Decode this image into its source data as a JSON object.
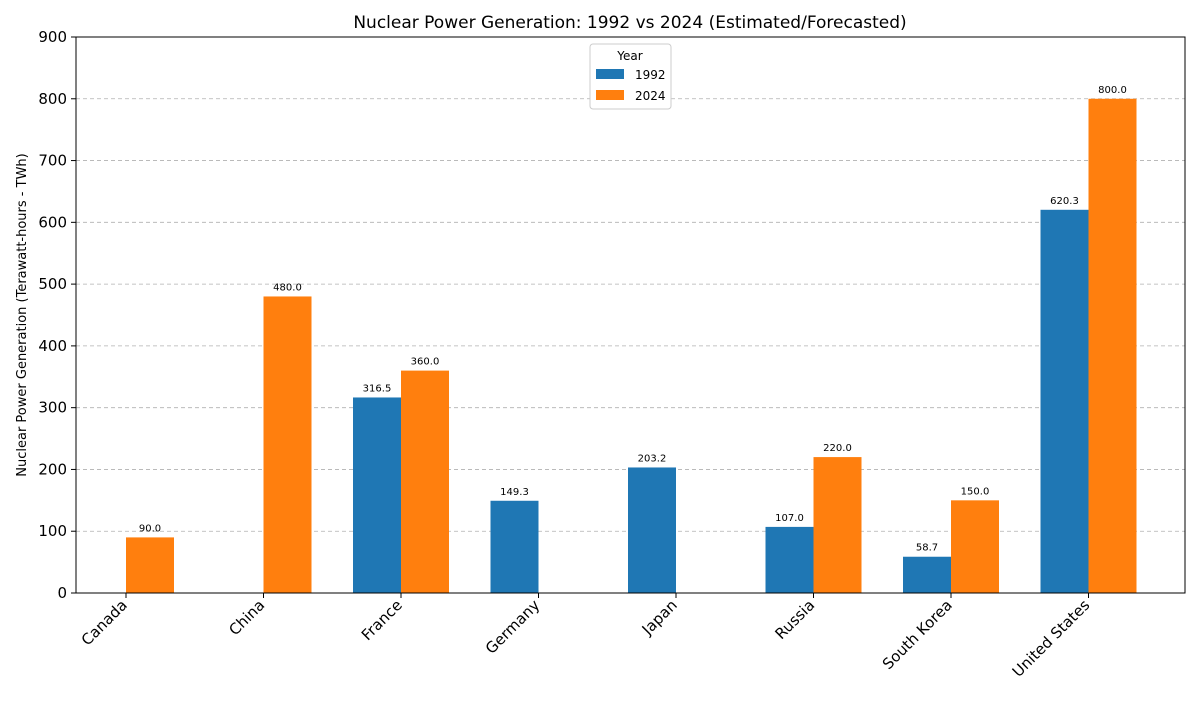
{
  "chart_data": {
    "type": "bar",
    "title": "Nuclear Power Generation: 1992 vs 2024 (Estimated/Forecasted)",
    "xlabel": "",
    "ylabel": "Nuclear Power Generation (Terawatt-hours - TWh)",
    "ylim": [
      0,
      900
    ],
    "yticks": [
      0,
      100,
      200,
      300,
      400,
      500,
      600,
      700,
      800,
      900
    ],
    "grid": true,
    "legend": {
      "title": "Year",
      "placement": "top-center"
    },
    "categories": [
      "Canada",
      "China",
      "France",
      "Germany",
      "Japan",
      "Russia",
      "South Korea",
      "United States"
    ],
    "series": [
      {
        "name": "1992",
        "color": "#1f77b4",
        "values": [
          null,
          null,
          316.5,
          149.3,
          203.2,
          107.0,
          58.7,
          620.3
        ],
        "labels": [
          "",
          "",
          "316.5",
          "149.3",
          "203.2",
          "107.0",
          "58.7",
          "620.3"
        ]
      },
      {
        "name": "2024",
        "color": "#ff7f0e",
        "values": [
          90.0,
          480.0,
          360.0,
          null,
          null,
          220.0,
          150.0,
          800.0
        ],
        "labels": [
          "90.0",
          "480.0",
          "360.0",
          "",
          "",
          "220.0",
          "150.0",
          "800.0"
        ]
      }
    ]
  }
}
